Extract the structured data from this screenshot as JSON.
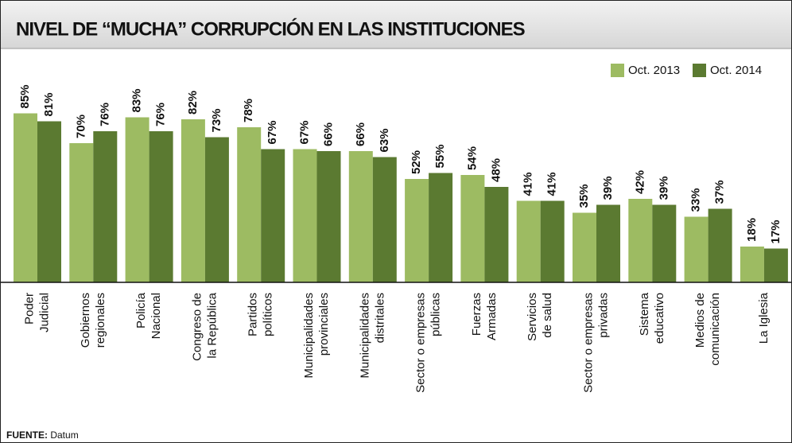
{
  "chart_data": {
    "type": "bar",
    "title": "NIVEL DE “MUCHA” CORRUPCIÓN EN LAS INSTITUCIONES",
    "categories": [
      [
        "Poder",
        "Judicial"
      ],
      [
        "Gobiernos",
        "regionales"
      ],
      [
        "Policía",
        "Nacional"
      ],
      [
        "Congreso de",
        "la República"
      ],
      [
        "Partidos",
        "políticos"
      ],
      [
        "Municipalidades",
        "provinciales"
      ],
      [
        "Municipalidades",
        "distritales"
      ],
      [
        "Sector o empresas",
        "públicas"
      ],
      [
        "Fuerzas",
        "Armadas"
      ],
      [
        "Servicios",
        "de salud"
      ],
      [
        "Sector o empresas",
        "privadas"
      ],
      [
        "Sistema",
        "educativo"
      ],
      [
        "Medios de",
        "comunicación"
      ],
      [
        "La Iglesia"
      ]
    ],
    "series": [
      {
        "name": "Oct. 2013",
        "color": "#9dbb62",
        "values": [
          85,
          70,
          83,
          82,
          78,
          67,
          66,
          52,
          54,
          41,
          35,
          42,
          33,
          18
        ],
        "value_labels": [
          "85%",
          "70%",
          "83%",
          "82%",
          "78%",
          "67%",
          "66%",
          "52%",
          "54%",
          "41%",
          "35%",
          "42%",
          "33%",
          "18%"
        ]
      },
      {
        "name": "Oct. 2014",
        "color": "#5b7a31",
        "values": [
          81,
          76,
          76,
          73,
          67,
          66,
          63,
          55,
          48,
          41,
          39,
          39,
          37,
          17
        ],
        "value_labels": [
          "81%",
          "76%",
          "76%",
          "73%",
          "67%",
          "66%",
          "63%",
          "55%",
          "48%",
          "41%",
          "39%",
          "39%",
          "37%",
          "17%"
        ]
      }
    ],
    "ylim": [
      0,
      100
    ],
    "source": {
      "label": "FUENTE:",
      "text": "Datum"
    }
  }
}
